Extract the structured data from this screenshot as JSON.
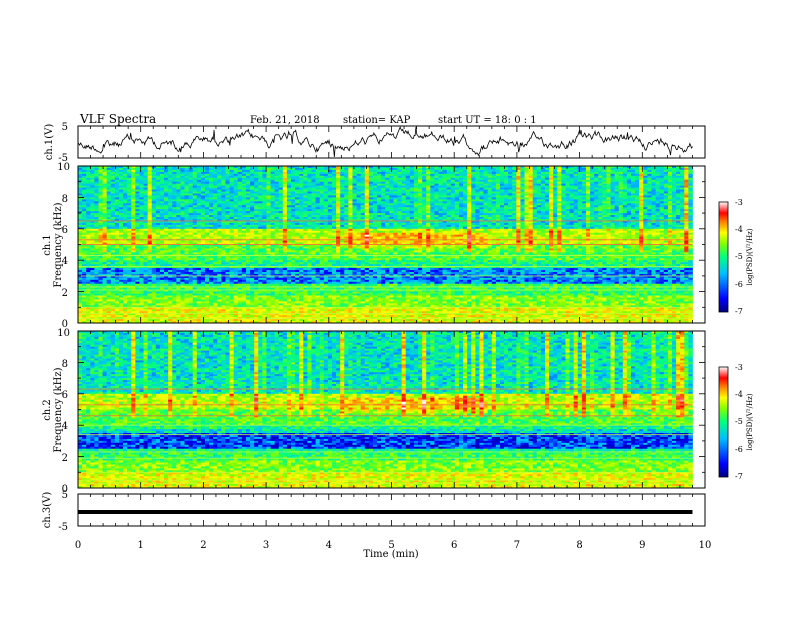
{
  "header": {
    "title": "VLF Spectra",
    "date": "Feb. 21, 2018",
    "station": "station= KAP",
    "start": "start  UT =   18: 0  : 1"
  },
  "chart_data": [
    {
      "type": "line",
      "name": "ch1-waveform",
      "ylabel": "ch.1(V)",
      "ylim": [
        -5,
        5
      ],
      "yticks": [
        "5",
        "-5"
      ],
      "xlim": [
        0,
        10
      ],
      "note_level": 0
    },
    {
      "type": "heatmap",
      "name": "ch1-spectrogram",
      "ylabel": "ch.1",
      "ylabel2": "Frequency (kHz)",
      "ylim": [
        0,
        10
      ],
      "yticks": [
        "0",
        "2",
        "4",
        "6",
        "8",
        "10"
      ],
      "xlim": [
        0,
        10
      ],
      "colorbar": {
        "label": "log(PSD)(V²/Hz)",
        "range": [
          -7,
          -3
        ],
        "ticks": [
          "-3",
          "-4",
          "-5",
          "-6",
          "-7"
        ]
      }
    },
    {
      "type": "heatmap",
      "name": "ch2-spectrogram",
      "ylabel": "ch.2",
      "ylabel2": "Frequency (kHz)",
      "ylim": [
        0,
        10
      ],
      "yticks": [
        "0",
        "2",
        "4",
        "6",
        "8",
        "10"
      ],
      "xlim": [
        0,
        10
      ],
      "colorbar": {
        "label": "log(PSD)(V²/Hz)",
        "range": [
          -7,
          -3
        ],
        "ticks": [
          "-3",
          "-4",
          "-5",
          "-6",
          "-7"
        ]
      }
    },
    {
      "type": "line",
      "name": "ch3-waveform",
      "ylabel": "ch.3(V)",
      "ylim": [
        -5,
        5
      ],
      "yticks": [
        "5",
        "-5"
      ],
      "xlim": [
        0,
        10
      ],
      "level": -1.5
    }
  ],
  "xaxis": {
    "label": "Time (min)",
    "ticks": [
      "0",
      "1",
      "2",
      "3",
      "4",
      "5",
      "6",
      "7",
      "8",
      "9",
      "10"
    ],
    "data_end": 9.8
  },
  "colors": {
    "line": "#000000",
    "colormap": [
      "#00007f",
      "#0000ff",
      "#00bfff",
      "#00ff80",
      "#80ff00",
      "#ffff00",
      "#ff8000",
      "#ff0000",
      "#ffffff"
    ]
  }
}
